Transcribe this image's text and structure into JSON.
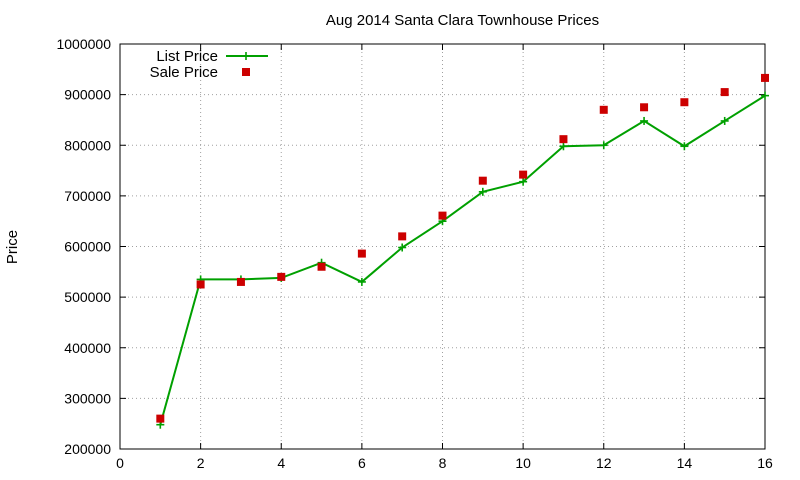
{
  "chart_data": {
    "type": "line",
    "title": "Aug 2014 Santa Clara Townhouse Prices",
    "xlabel": "",
    "ylabel": "Price",
    "xlim": [
      0,
      16
    ],
    "ylim": [
      200000,
      1000000
    ],
    "xticks": [
      "0",
      "2",
      "4",
      "6",
      "8",
      "10",
      "12",
      "14",
      "16"
    ],
    "yticks": [
      "200000",
      "300000",
      "400000",
      "500000",
      "600000",
      "700000",
      "800000",
      "900000",
      "1000000"
    ],
    "grid": true,
    "legend_position": "top-left",
    "x": [
      1,
      2,
      3,
      4,
      5,
      6,
      7,
      8,
      9,
      10,
      11,
      12,
      13,
      14,
      15,
      16
    ],
    "series": [
      {
        "name": "List Price",
        "style": "line-plus",
        "color": "#00a000",
        "values": [
          248000,
          535000,
          535000,
          538000,
          568000,
          530000,
          598000,
          650000,
          708000,
          728000,
          798000,
          800000,
          848000,
          798000,
          848000,
          898000
        ]
      },
      {
        "name": "Sale Price",
        "style": "square-points",
        "color": "#cc0000",
        "values": [
          260000,
          525000,
          530000,
          540000,
          560000,
          586000,
          620000,
          661000,
          730000,
          742000,
          812000,
          870000,
          875000,
          885000,
          905000,
          933000
        ]
      }
    ]
  }
}
